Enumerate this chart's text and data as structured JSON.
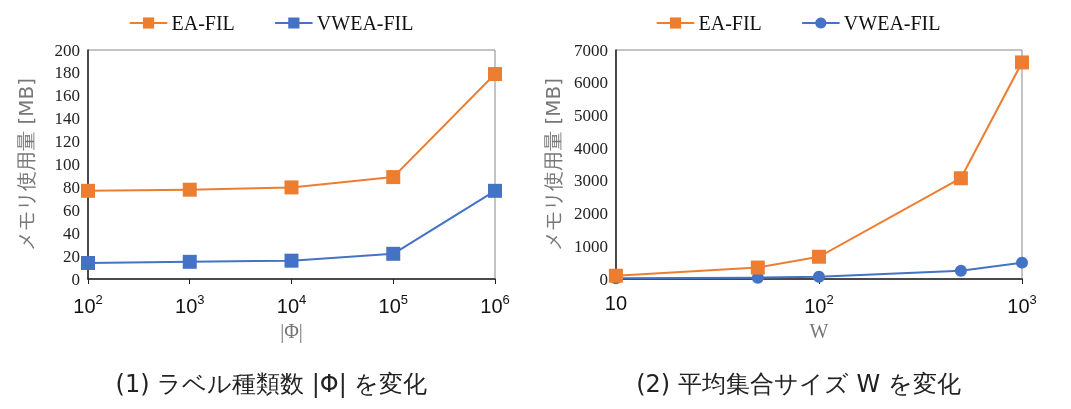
{
  "chart_data": [
    {
      "type": "line",
      "title": "(1) ラベル種類数 |Φ| を変化",
      "xlabel": "|Φ|",
      "ylabel": "メモリ使用量 [MB]",
      "x": [
        100,
        1000,
        10000,
        100000,
        1000000
      ],
      "series": [
        {
          "name": "EA-FIL",
          "color": "#ed7d31",
          "values": [
            77,
            78,
            80,
            89,
            179
          ]
        },
        {
          "name": "VWEA-FIL",
          "color": "#4472c4",
          "values": [
            14,
            15,
            16,
            22,
            77
          ]
        }
      ],
      "log": "x",
      "xlim": [
        100,
        1000000
      ],
      "xticks": [
        {
          "value": 100,
          "label": "10$^{2}$"
        },
        {
          "value": 1000,
          "label": "10$^{3}$"
        },
        {
          "value": 10000,
          "label": "10$^{4}$"
        },
        {
          "value": 100000,
          "label": "10$^{5}$"
        },
        {
          "value": 1000000,
          "label": "10$^{6}$"
        }
      ],
      "ylim": [
        0,
        200
      ],
      "yticks": [
        0,
        20,
        40,
        60,
        80,
        100,
        120,
        140,
        160,
        180,
        200
      ],
      "grid": false,
      "legend": "top",
      "marker": "square",
      "line_style": "solid"
    },
    {
      "type": "line",
      "title": "(2) 平均集合サイズ W を変化",
      "xlabel": "W",
      "ylabel": "メモリ使用量 [MB]",
      "x": [
        10,
        50,
        100,
        500,
        1000
      ],
      "series": [
        {
          "name": "EA-FIL",
          "color": "#ed7d31",
          "values": [
            100,
            350,
            680,
            3080,
            6620
          ],
          "marker": "square"
        },
        {
          "name": "VWEA-FIL",
          "color": "#4472c4",
          "values": [
            20,
            40,
            70,
            250,
            500
          ],
          "marker": "circle"
        }
      ],
      "log": "x",
      "xlim": [
        10,
        1000
      ],
      "xticks": [
        10,
        {
          "value": 100,
          "label": "10$^{2}$"
        },
        {
          "value": 1000,
          "label": "10$^{3}$"
        }
      ],
      "ylim": [
        0,
        7000
      ],
      "yticks": [
        0,
        1000,
        2000,
        3000,
        4000,
        5000,
        6000,
        7000
      ],
      "grid": false,
      "legend": "top",
      "line_style": "solid"
    }
  ]
}
